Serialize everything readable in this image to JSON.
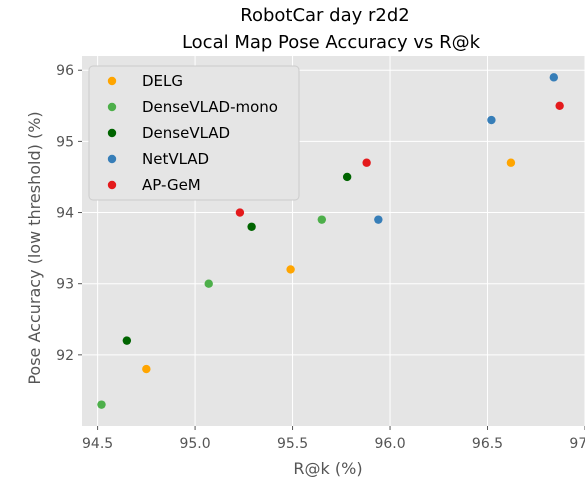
{
  "chart_data": {
    "type": "scatter",
    "title": "RobotCar day r2d2",
    "subtitle": "Local Map Pose Accuracy vs R@k",
    "xlabel": "R@k (%)",
    "ylabel": "Pose Accuracy (low threshold) (%)",
    "xlim": [
      94.42,
      97.0
    ],
    "ylim": [
      91.0,
      96.2
    ],
    "xticks": [
      "94.5",
      "95.0",
      "95.5",
      "96.0",
      "96.5",
      "97.0"
    ],
    "yticks": [
      "92",
      "93",
      "94",
      "95",
      "96"
    ],
    "xtick_values": [
      94.5,
      95.0,
      95.5,
      96.0,
      96.5,
      97.0
    ],
    "ytick_values": [
      92,
      93,
      94,
      95,
      96
    ],
    "grid": true,
    "legend_position": "top-left",
    "series": [
      {
        "name": "DELG",
        "color": "#FFA500",
        "points": [
          [
            94.75,
            91.8
          ],
          [
            95.49,
            93.2
          ],
          [
            96.62,
            94.7
          ]
        ]
      },
      {
        "name": "DenseVLAD-mono",
        "color": "#4DAF4A",
        "points": [
          [
            94.52,
            91.3
          ],
          [
            95.07,
            93.0
          ],
          [
            95.65,
            93.9
          ]
        ]
      },
      {
        "name": "DenseVLAD",
        "color": "#006400",
        "points": [
          [
            94.65,
            92.2
          ],
          [
            95.29,
            93.8
          ],
          [
            95.78,
            94.5
          ]
        ]
      },
      {
        "name": "NetVLAD",
        "color": "#377EB8",
        "points": [
          [
            95.94,
            93.9
          ],
          [
            96.52,
            95.3
          ],
          [
            96.84,
            95.9
          ]
        ]
      },
      {
        "name": "AP-GeM",
        "color": "#E41A1C",
        "points": [
          [
            95.23,
            94.0
          ],
          [
            95.88,
            94.7
          ],
          [
            96.87,
            95.5
          ]
        ]
      }
    ]
  }
}
